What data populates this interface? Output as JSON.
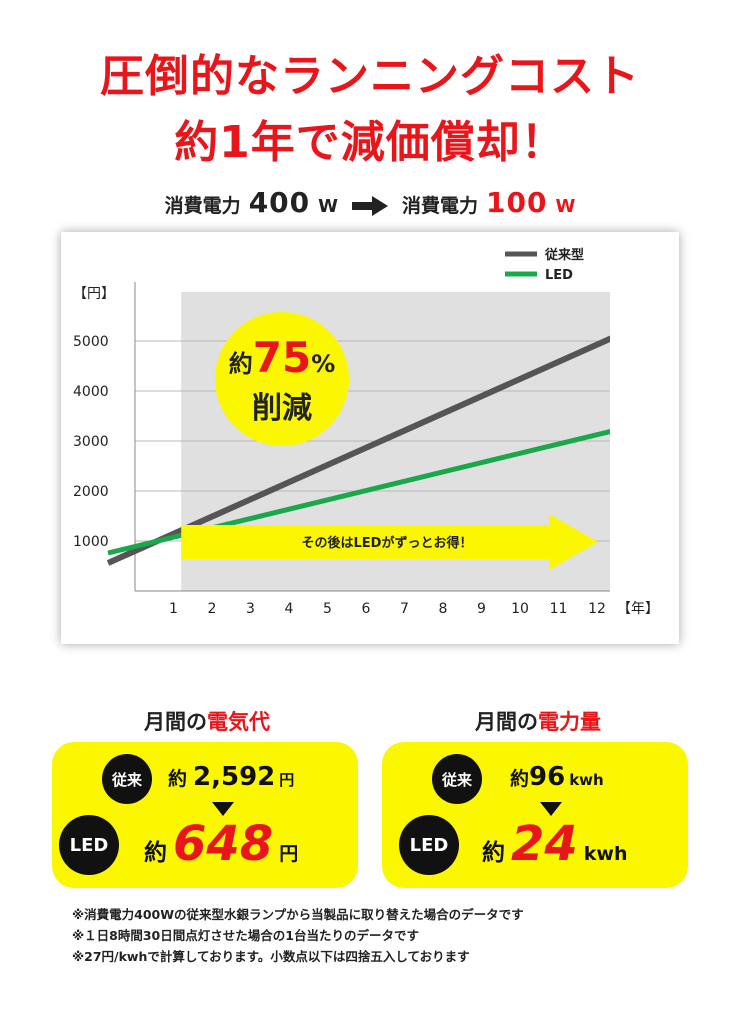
{
  "headline": {
    "line1": "圧倒的なランニングコスト",
    "line2": "約1年で減価償却！"
  },
  "power_comparison": {
    "label": "消費電力",
    "old_value": "400",
    "old_unit": "W",
    "new_value": "100",
    "new_unit": "W",
    "arrow_icon": "right-arrow-icon"
  },
  "chart_data": {
    "type": "line",
    "y_unit_label": "【円】",
    "x_unit_label": "【年】",
    "x": [
      0,
      12.5
    ],
    "xlim": [
      0,
      12.5
    ],
    "ylim": [
      0,
      5500
    ],
    "x_ticks": [
      1,
      2,
      3,
      4,
      5,
      6,
      7,
      8,
      9,
      10,
      11,
      12
    ],
    "y_ticks": [
      1000,
      2000,
      3000,
      4000,
      5000
    ],
    "grid": "horizontal",
    "legend_position": "top-right",
    "series": [
      {
        "name": "従来型",
        "color": "#555555",
        "points": [
          [
            -0.7,
            560
          ],
          [
            12.5,
            5100
          ]
        ]
      },
      {
        "name": "LED",
        "color": "#1aa84a",
        "points": [
          [
            -0.7,
            760
          ],
          [
            12.5,
            3220
          ]
        ]
      }
    ],
    "shaded_region_from_x": 1.2,
    "badge": {
      "prefix": "約",
      "number": "75",
      "percent": "%",
      "text": "削減"
    },
    "arrow_banner": "その後はLEDがずっとお得！"
  },
  "electricity_cost": {
    "title_prefix": "月間の",
    "title_highlight": "電気代",
    "old_badge": "従来",
    "approx": "約",
    "old_value": "2,592",
    "old_unit": "円",
    "new_badge": "LED",
    "new_value": "648",
    "new_unit": "円"
  },
  "power_amount": {
    "title_prefix": "月間の",
    "title_highlight": "電力量",
    "old_badge": "従来",
    "approx": "約",
    "old_value": "96",
    "old_unit": "kwh",
    "new_badge": "LED",
    "new_value": "24",
    "new_unit": "kwh"
  },
  "notes": [
    "※消費電力400Wの従来型水銀ランプから当製品に取り替えた場合のデータです",
    "※１日8時間30日間点灯させた場合の1台当たりのデータです",
    "※27円/kwhで計算しております。小数点以下は四捨五入しております"
  ],
  "colors": {
    "accent_red": "#e8161b",
    "yellow": "#fbf700",
    "old_line": "#555555",
    "led_line": "#1aa84a",
    "shade": "#e0e0e0"
  }
}
